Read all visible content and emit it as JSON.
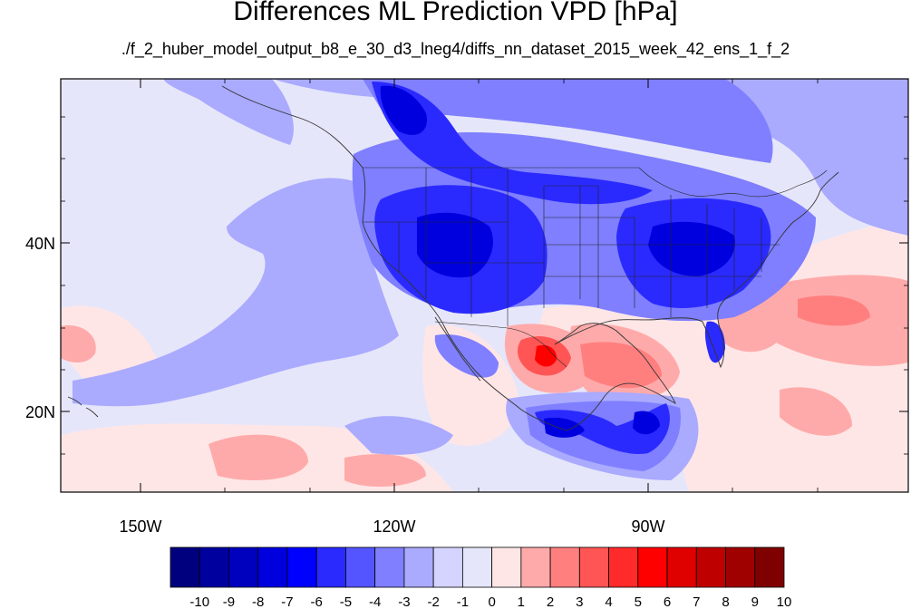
{
  "title": "Differences ML Prediction VPD [hPa]",
  "subtitle": "./f_2_huber_model_output_b8_e_30_d3_lneg4/diffs_nn_dataset_2015_week_42_ens_1_f_2",
  "axes": {
    "lon_range": [
      -160,
      -63
    ],
    "lat_range": [
      11,
      58
    ],
    "x_ticks": [
      "150W",
      "120W",
      "90W"
    ],
    "y_ticks": [
      "40N",
      "20N"
    ]
  },
  "colorbar": {
    "labels": [
      "-10",
      "-9",
      "-8",
      "-7",
      "-6",
      "-5",
      "-4",
      "-3",
      "-2",
      "-1",
      "0",
      "1",
      "2",
      "3",
      "4",
      "5",
      "6",
      "7",
      "8",
      "9",
      "10"
    ],
    "colors": [
      "#00007f",
      "#00009f",
      "#0000bf",
      "#0000df",
      "#0000ff",
      "#2a2aff",
      "#5555ff",
      "#7f7fff",
      "#aaaaff",
      "#d4d4ff",
      "#e6e6fa",
      "#ffe6e6",
      "#ffaaaa",
      "#ff7f7f",
      "#ff5555",
      "#ff2a2a",
      "#ff0000",
      "#df0000",
      "#bf0000",
      "#9f0000",
      "#7f0000"
    ]
  },
  "field_colors": {
    "background": "#e6e6fa",
    "light_blue": "#aaaaff",
    "mid_blue": "#7f7fff",
    "strong_blue": "#2a2aff",
    "deep_blue": "#0000df",
    "light_red": "#ffe6e6",
    "pink": "#ffaaaa",
    "red": "#ff5555",
    "strong_red": "#ff0000"
  }
}
